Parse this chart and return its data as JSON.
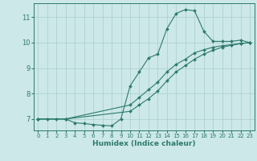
{
  "xlabel": "Humidex (Indice chaleur)",
  "bg_color": "#cce8e8",
  "grid_color": "#aacccc",
  "line_color": "#2d7a6e",
  "xlim": [
    -0.5,
    23.5
  ],
  "ylim": [
    6.55,
    11.55
  ],
  "xticks": [
    0,
    1,
    2,
    3,
    4,
    5,
    6,
    7,
    8,
    9,
    10,
    11,
    12,
    13,
    14,
    15,
    16,
    17,
    18,
    19,
    20,
    21,
    22,
    23
  ],
  "yticks": [
    7,
    8,
    9,
    10,
    11
  ],
  "line1_x": [
    0,
    1,
    2,
    3,
    4,
    5,
    6,
    7,
    8,
    9,
    10,
    11,
    12,
    13,
    14,
    15,
    16,
    17,
    18,
    19,
    20,
    21,
    22,
    23
  ],
  "line1_y": [
    7.0,
    7.0,
    7.0,
    7.0,
    6.85,
    6.82,
    6.78,
    6.75,
    6.73,
    7.0,
    8.3,
    8.85,
    9.4,
    9.55,
    10.55,
    11.15,
    11.3,
    11.25,
    10.45,
    10.05,
    10.05,
    10.05,
    10.1,
    10.0
  ],
  "line2_x": [
    0,
    3,
    10,
    11,
    12,
    13,
    14,
    15,
    16,
    17,
    18,
    19,
    20,
    21,
    22,
    23
  ],
  "line2_y": [
    7.0,
    7.0,
    7.55,
    7.85,
    8.15,
    8.45,
    8.85,
    9.15,
    9.35,
    9.6,
    9.72,
    9.82,
    9.88,
    9.92,
    9.97,
    10.0
  ],
  "line3_x": [
    0,
    3,
    10,
    11,
    12,
    13,
    14,
    15,
    16,
    17,
    18,
    19,
    20,
    21,
    22,
    23
  ],
  "line3_y": [
    7.0,
    7.0,
    7.3,
    7.55,
    7.8,
    8.1,
    8.5,
    8.85,
    9.1,
    9.35,
    9.55,
    9.7,
    9.82,
    9.9,
    9.96,
    10.0
  ]
}
